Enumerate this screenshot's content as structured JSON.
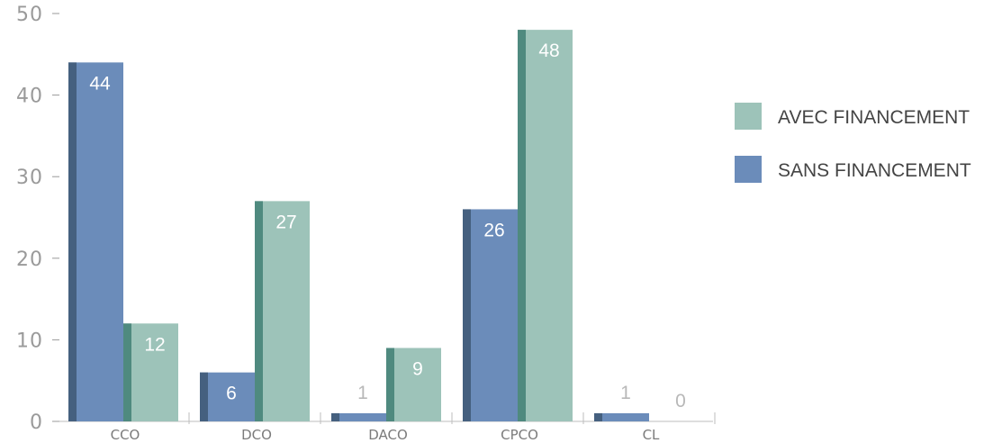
{
  "chart_data": {
    "type": "bar",
    "title": "",
    "xlabel": "",
    "ylabel": "",
    "categories": [
      "CCO",
      "DCO",
      "DACO",
      "CPCO",
      "CL"
    ],
    "ylim": [
      0,
      50
    ],
    "yticks": [
      0,
      10,
      20,
      30,
      40,
      50
    ],
    "grid": false,
    "legend_position": "right",
    "series": [
      {
        "name": "SANS FINANCEMENT",
        "values": [
          44,
          6,
          1,
          26,
          1
        ],
        "color": "#6b8cba",
        "shade": "#45607f"
      },
      {
        "name": "AVEC FINANCEMENT",
        "values": [
          12,
          27,
          9,
          48,
          0
        ],
        "color": "#9dc3b9",
        "shade": "#4f8a7f"
      }
    ],
    "legend_order": [
      1,
      0
    ]
  }
}
